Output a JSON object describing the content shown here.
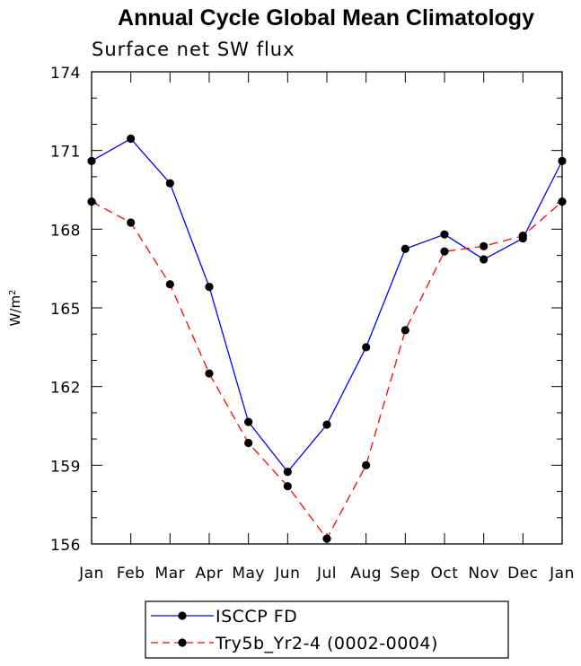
{
  "chart_data": {
    "type": "line",
    "title": "Annual Cycle Global Mean Climatology",
    "subtitle": "Surface net SW flux",
    "xlabel": "",
    "ylabel_base": "W/m",
    "ylabel_sup": "2",
    "categories": [
      "Jan",
      "Feb",
      "Mar",
      "Apr",
      "May",
      "Jun",
      "Jul",
      "Aug",
      "Sep",
      "Oct",
      "Nov",
      "Dec",
      "Jan"
    ],
    "ylim": [
      156,
      174
    ],
    "yticks": [
      156,
      159,
      162,
      165,
      168,
      171,
      174
    ],
    "series": [
      {
        "name": "ISCCP FD",
        "color": "#0000ff",
        "dash": "solid",
        "values": [
          170.6,
          171.45,
          169.75,
          165.8,
          160.65,
          158.75,
          160.55,
          163.5,
          167.25,
          167.8,
          166.85,
          167.65,
          170.6
        ]
      },
      {
        "name": "Try5b_Yr2-4 (0002-0004)",
        "color": "#ff0000",
        "dash": "dashed",
        "values": [
          169.05,
          168.25,
          165.9,
          162.5,
          159.85,
          158.2,
          156.2,
          159.0,
          164.15,
          167.15,
          167.35,
          167.75,
          169.05
        ]
      }
    ]
  }
}
